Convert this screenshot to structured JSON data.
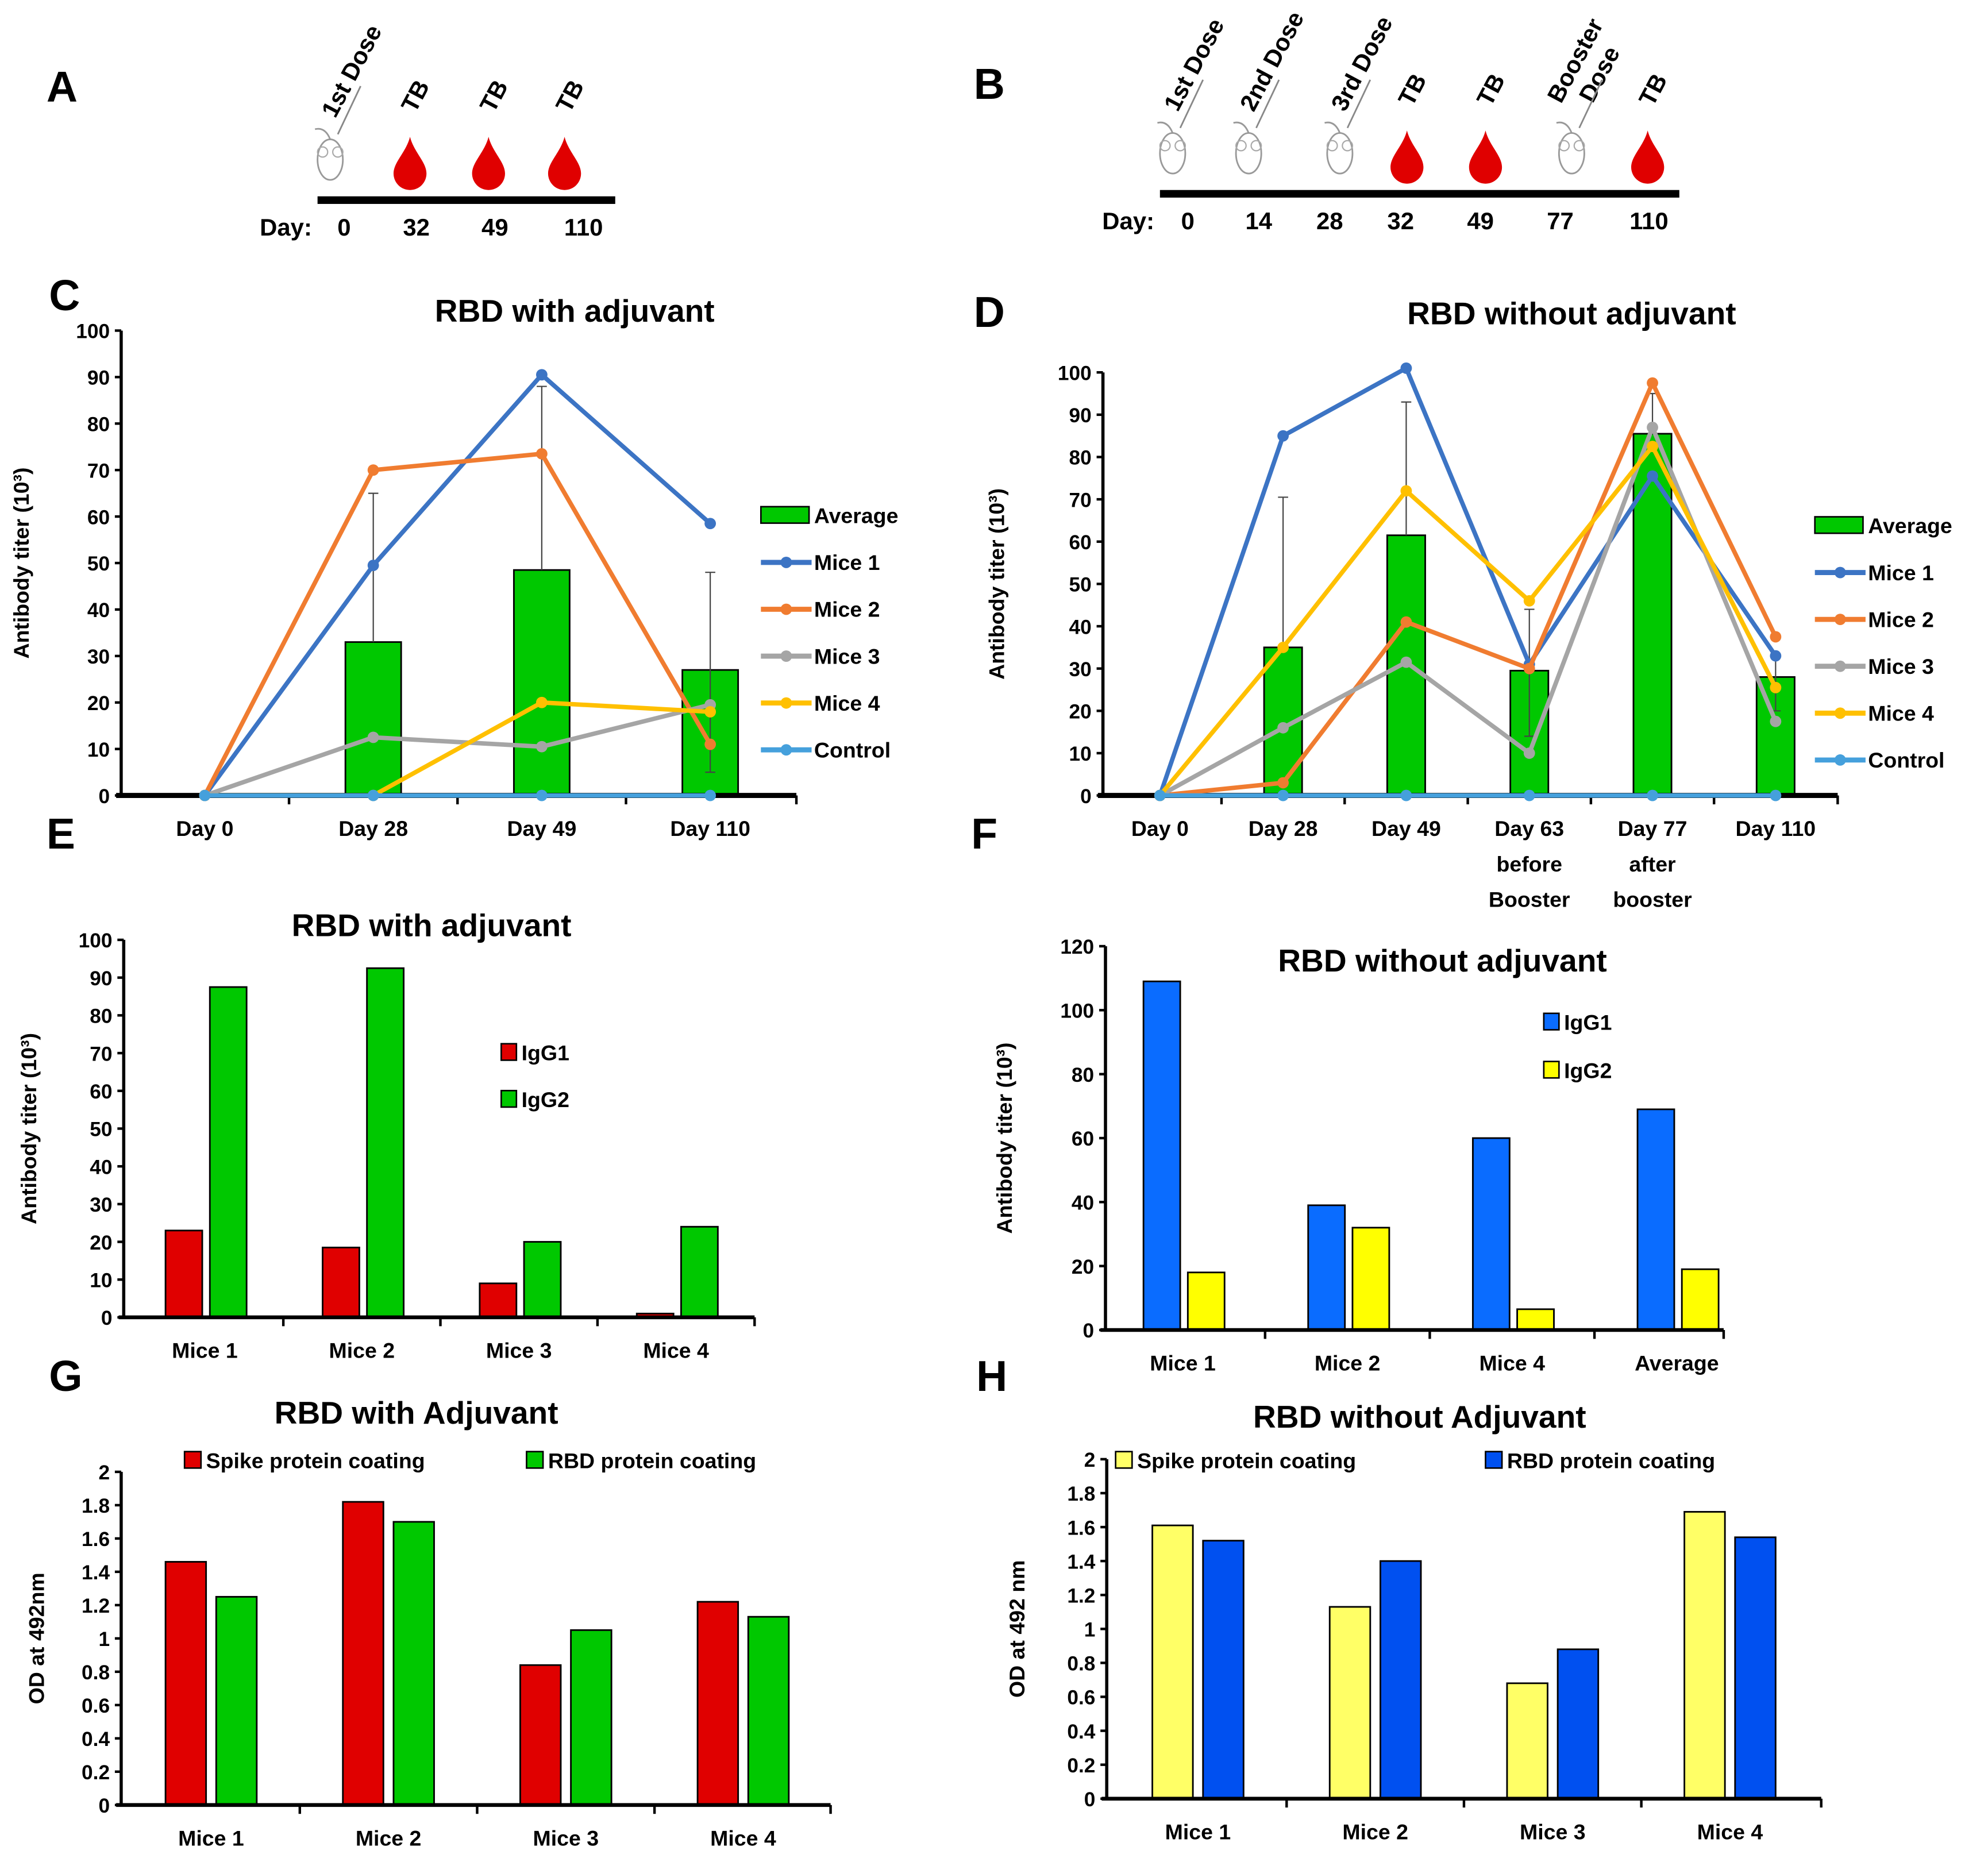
{
  "panel_labels": [
    "A",
    "B",
    "C",
    "D",
    "E",
    "F",
    "G",
    "H"
  ],
  "timeline_a": {
    "day_label": "Day:",
    "days": [
      "0",
      "32",
      "49",
      "110"
    ],
    "events": [
      {
        "kind": "dose",
        "label": "1st Dose",
        "ordinal": "1",
        "sup": "st",
        "word": "Dose"
      },
      {
        "kind": "bleed",
        "label": "TB"
      },
      {
        "kind": "bleed",
        "label": "TB"
      },
      {
        "kind": "bleed",
        "label": "TB"
      }
    ]
  },
  "timeline_b": {
    "day_label": "Day:",
    "days": [
      "0",
      "14",
      "28",
      "32",
      "49",
      "77",
      "110"
    ],
    "events": [
      {
        "kind": "dose",
        "label": "1st Dose",
        "ordinal": "1",
        "sup": "st",
        "word": "Dose"
      },
      {
        "kind": "dose",
        "label": "2nd Dose",
        "ordinal": "2",
        "sup": "nd",
        "word": "Dose"
      },
      {
        "kind": "dose",
        "label": "3rd Dose",
        "ordinal": "3",
        "sup": "rd",
        "word": "Dose"
      },
      {
        "kind": "bleed",
        "label": "TB"
      },
      {
        "kind": "bleed",
        "label": "TB"
      },
      {
        "kind": "booster",
        "label": "Booster Dose",
        "line1": "Booster",
        "line2": "Dose"
      },
      {
        "kind": "bleed",
        "label": "TB"
      }
    ]
  },
  "chart_data": [
    {
      "panel": "C",
      "type": "bar+line",
      "title": "RBD with adjuvant",
      "ylabel": "Antibody titer (10³)",
      "xlabel": "",
      "ylim": [
        0,
        100
      ],
      "ystep": 10,
      "categories": [
        "Day 0",
        "Day 28",
        "Day 49",
        "Day 110"
      ],
      "series": [
        {
          "name": "Average",
          "type": "bar",
          "color": "#00c800",
          "values": [
            0,
            33,
            48.5,
            27
          ],
          "error_upper": [
            null,
            65,
            88,
            48
          ],
          "error_lower": [
            null,
            null,
            null,
            5
          ]
        },
        {
          "name": "Mice 1",
          "type": "line",
          "color": "#3c74c4",
          "values": [
            0,
            49.5,
            90.5,
            58.5
          ]
        },
        {
          "name": "Mice 2",
          "type": "line",
          "color": "#f07c30",
          "values": [
            0,
            70,
            73.5,
            11
          ]
        },
        {
          "name": "Mice 3",
          "type": "line",
          "color": "#a5a5a5",
          "values": [
            0,
            12.5,
            10.5,
            19.5
          ]
        },
        {
          "name": "Mice 4",
          "type": "line",
          "color": "#ffc000",
          "values": [
            0,
            0,
            20,
            18
          ]
        },
        {
          "name": "Control",
          "type": "line",
          "color": "#45a0dc",
          "values": [
            0,
            0,
            0,
            0
          ]
        }
      ],
      "legend": "right"
    },
    {
      "panel": "D",
      "type": "bar+line",
      "title": "RBD without adjuvant",
      "ylabel": "Antibody titer (10³)",
      "xlabel": "",
      "ylim": [
        0,
        100
      ],
      "ystep": 10,
      "categories": [
        "Day 0",
        "Day 28",
        "Day 49",
        "Day 63\nbefore\nBooster",
        "Day 77\nafter\nbooster",
        "Day 110"
      ],
      "series": [
        {
          "name": "Average",
          "type": "bar",
          "color": "#00c800",
          "values": [
            0,
            35,
            61.5,
            29.5,
            85.5,
            28
          ],
          "error_upper": [
            null,
            70.5,
            93,
            44,
            95,
            33
          ],
          "error_lower": [
            null,
            null,
            null,
            14,
            null,
            20
          ]
        },
        {
          "name": "Mice 1",
          "type": "line",
          "color": "#3c74c4",
          "values": [
            0,
            85,
            101,
            31,
            75.5,
            33
          ]
        },
        {
          "name": "Mice 2",
          "type": "line",
          "color": "#f07c30",
          "values": [
            0,
            3,
            41,
            30,
            97.5,
            37.5
          ]
        },
        {
          "name": "Mice 3",
          "type": "line",
          "color": "#a5a5a5",
          "values": [
            0,
            16,
            31.5,
            10,
            87,
            17.5
          ]
        },
        {
          "name": "Mice 4",
          "type": "line",
          "color": "#ffc000",
          "values": [
            0,
            35,
            72,
            46,
            82.5,
            25.5
          ]
        },
        {
          "name": "Control",
          "type": "line",
          "color": "#45a0dc",
          "values": [
            0,
            0,
            0,
            0,
            0,
            0
          ]
        }
      ],
      "legend": "right"
    },
    {
      "panel": "E",
      "type": "bar",
      "title": "RBD with adjuvant",
      "ylabel": "Antibody titer (10³)",
      "xlabel": "",
      "ylim": [
        0,
        100
      ],
      "ystep": 10,
      "categories": [
        "Mice 1",
        "Mice 2",
        "Mice 3",
        "Mice 4"
      ],
      "series": [
        {
          "name": "IgG1",
          "type": "bar",
          "color": "#e00000",
          "values": [
            23,
            18.5,
            9,
            1
          ]
        },
        {
          "name": "IgG2",
          "type": "bar",
          "color": "#00c800",
          "values": [
            87.5,
            92.5,
            20,
            24
          ]
        }
      ],
      "legend": "center"
    },
    {
      "panel": "F",
      "type": "bar",
      "title": "RBD without adjuvant",
      "ylabel": "Antibody titer (10³)",
      "xlabel": "",
      "ylim": [
        0,
        120
      ],
      "ystep": 20,
      "categories": [
        "Mice 1",
        "Mice 2",
        "Mice 4",
        "Average"
      ],
      "series": [
        {
          "name": "IgG1",
          "type": "bar",
          "color": "#0a6cff",
          "values": [
            109,
            39,
            60,
            69
          ]
        },
        {
          "name": "IgG2",
          "type": "bar",
          "color": "#ffff00",
          "values": [
            18,
            32,
            6.5,
            19
          ]
        }
      ],
      "legend": "center"
    },
    {
      "panel": "G",
      "type": "bar",
      "title": "RBD with Adjuvant",
      "ylabel": "OD at 492nm",
      "xlabel": "",
      "ylim": [
        0,
        2
      ],
      "ystep": 0.2,
      "categories": [
        "Mice 1",
        "Mice 2",
        "Mice 3",
        "Mice 4"
      ],
      "series": [
        {
          "name": "Spike protein coating",
          "type": "bar",
          "color": "#e00000",
          "values": [
            1.46,
            1.82,
            0.84,
            1.22
          ]
        },
        {
          "name": "RBD protein coating",
          "type": "bar",
          "color": "#00c800",
          "values": [
            1.25,
            1.7,
            1.05,
            1.13
          ]
        }
      ],
      "legend": "top"
    },
    {
      "panel": "H",
      "type": "bar",
      "title": "RBD without Adjuvant",
      "ylabel": "OD at 492 nm",
      "xlabel": "",
      "ylim": [
        0,
        2
      ],
      "ystep": 0.2,
      "categories": [
        "Mice 1",
        "Mice 2",
        "Mice 3",
        "Mice 4"
      ],
      "series": [
        {
          "name": "Spike protein coating",
          "type": "bar",
          "color": "#ffff66",
          "values": [
            1.61,
            1.13,
            0.68,
            1.69
          ]
        },
        {
          "name": "RBD protein coating",
          "type": "bar",
          "color": "#0050f0",
          "values": [
            1.52,
            1.4,
            0.88,
            1.54
          ]
        }
      ],
      "legend": "top"
    }
  ]
}
